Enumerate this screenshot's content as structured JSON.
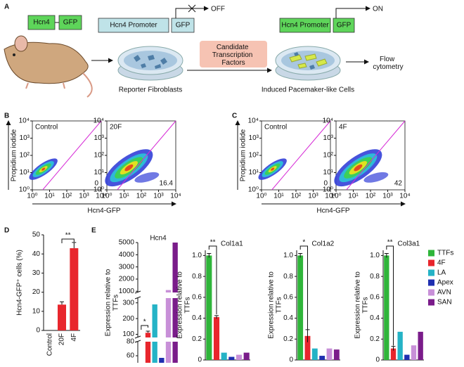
{
  "figure": {
    "panel_labels": [
      "A",
      "B",
      "C",
      "D",
      "E"
    ]
  },
  "diagram": {
    "hcn4": "Hcn4",
    "gfp": "GFP",
    "promoter_off": "Hcn4 Promoter",
    "gfp_off": "GFP",
    "off": "OFF",
    "factors": [
      "Candidate",
      "Transcription",
      "Factors"
    ],
    "promoter_on": "Hcn4 Promoter",
    "gfp_on": "GFP",
    "on": "ON",
    "fibroblasts": "Reporter Fibroblasts",
    "induced": "Induced Pacemaker-like Cells",
    "flow": [
      "Flow",
      "cytometry"
    ]
  },
  "chart_data": [
    {
      "type": "density",
      "label": "Control",
      "gate_percent": 0,
      "log": true,
      "xlim": [
        1,
        10000
      ],
      "ylim": [
        1,
        10000
      ],
      "xticks": [
        {
          "value": 1,
          "label": "10⁰"
        },
        {
          "value": 10,
          "label": "10¹"
        },
        {
          "value": 100,
          "label": "10²"
        },
        {
          "value": 1000,
          "label": "10³"
        },
        {
          "value": 10000,
          "label": "10⁴"
        }
      ],
      "yticks": [
        {
          "value": 1,
          "label": "10⁰"
        },
        {
          "value": 10,
          "label": "10¹"
        },
        {
          "value": 100,
          "label": "10²"
        },
        {
          "value": 1000,
          "label": "10³"
        },
        {
          "value": 10000,
          "label": "10⁴"
        }
      ],
      "xlabel": "Hcn4-GFP",
      "ylabel": "Propidium iodide"
    },
    {
      "type": "density",
      "label": "20F",
      "gate_percent": 16.4,
      "log": true,
      "xlim": [
        1,
        10000
      ],
      "ylim": [
        1,
        10000
      ],
      "xticks": [
        {
          "value": 1,
          "label": "10⁰"
        },
        {
          "value": 10,
          "label": "10¹"
        },
        {
          "value": 100,
          "label": "10²"
        },
        {
          "value": 1000,
          "label": "10³"
        },
        {
          "value": 10000,
          "label": "10⁴"
        }
      ],
      "yticks": [
        {
          "value": 1,
          "label": "10⁰"
        },
        {
          "value": 10,
          "label": "10¹"
        },
        {
          "value": 100,
          "label": "10²"
        },
        {
          "value": 1000,
          "label": "10³"
        },
        {
          "value": 10000,
          "label": "10⁴"
        }
      ]
    },
    {
      "type": "density",
      "label": "Control",
      "gate_percent": 0,
      "log": true,
      "xlim": [
        1,
        10000
      ],
      "ylim": [
        1,
        10000
      ],
      "xticks": [
        {
          "value": 1,
          "label": "10⁰"
        },
        {
          "value": 10,
          "label": "10¹"
        },
        {
          "value": 100,
          "label": "10²"
        },
        {
          "value": 1000,
          "label": "10³"
        },
        {
          "value": 10000,
          "label": "10⁴"
        }
      ],
      "yticks": [
        {
          "value": 1,
          "label": "10⁰"
        },
        {
          "value": 10,
          "label": "10¹"
        },
        {
          "value": 100,
          "label": "10²"
        },
        {
          "value": 1000,
          "label": "10³"
        },
        {
          "value": 10000,
          "label": "10⁴"
        }
      ],
      "xlabel": "Hcn4-GFP",
      "ylabel": "Propidium iodide"
    },
    {
      "type": "density",
      "label": "4F",
      "gate_percent": 42,
      "log": true,
      "xlim": [
        1,
        10000
      ],
      "ylim": [
        1,
        10000
      ],
      "xticks": [
        {
          "value": 1,
          "label": "10⁰"
        },
        {
          "value": 10,
          "label": "10¹"
        },
        {
          "value": 100,
          "label": "10²"
        },
        {
          "value": 1000,
          "label": "10³"
        },
        {
          "value": 10000,
          "label": "10⁴"
        }
      ],
      "yticks": [
        {
          "value": 1,
          "label": "10⁰"
        },
        {
          "value": 10,
          "label": "10¹"
        },
        {
          "value": 100,
          "label": "10²"
        },
        {
          "value": 1000,
          "label": "10³"
        },
        {
          "value": 10000,
          "label": "10⁴"
        }
      ]
    },
    {
      "type": "bar",
      "categories": [
        "Control",
        "20F",
        "4F"
      ],
      "values": [
        0,
        13.5,
        43
      ],
      "errors": [
        0,
        1.5,
        3
      ],
      "color": "#e8262d",
      "ylim": [
        0,
        50
      ],
      "yticks": [
        0,
        10,
        20,
        30,
        40,
        50
      ],
      "ylabel": "Hcn4-GFP⁺ cells (%)",
      "significance": "**"
    },
    {
      "type": "brokenbar",
      "title": "Hcn4",
      "values": [
        1,
        110,
        290,
        57,
        1100,
        5000
      ],
      "errors": [
        null,
        10,
        null,
        null,
        null,
        null
      ],
      "colors": [
        "#2fb53a",
        "#e8262d",
        "#25b3c6",
        "#1f2fb0",
        "#c890d8",
        "#7a1c8a"
      ],
      "segments": [
        {
          "ylim": [
            50,
            80
          ],
          "yticks": [
            60,
            80
          ]
        },
        {
          "ylim": [
            80,
            330
          ],
          "yticks": [
            100,
            200,
            300
          ]
        },
        {
          "ylim": [
            900,
            5000
          ],
          "yticks": [
            1000,
            2000,
            3000,
            4000,
            5000
          ]
        }
      ],
      "ylabel": [
        "Expression relative to",
        "TTFs"
      ],
      "significance": "*"
    },
    {
      "type": "bar6",
      "title": "Col1a1",
      "values": [
        1,
        0.41,
        0.07,
        0.03,
        0.05,
        0.07
      ],
      "errors": [
        0.02,
        0.015,
        null,
        null,
        null,
        null
      ],
      "colors": [
        "#2fb53a",
        "#e8262d",
        "#25b3c6",
        "#1f2fb0",
        "#c890d8",
        "#7a1c8a"
      ],
      "ylim": [
        0,
        1.05
      ],
      "yticks": [
        0,
        0.2,
        0.4,
        0.6,
        0.8,
        {
          "value": 1,
          "label": "1.0"
        }
      ],
      "ylabel": [
        "Expression relative to",
        "TTFs"
      ],
      "significance": "**"
    },
    {
      "type": "bar6",
      "title": "Col1a2",
      "values": [
        1,
        0.23,
        0.11,
        0.04,
        0.11,
        0.1
      ],
      "errors": [
        0.02,
        0.06,
        null,
        null,
        null,
        null
      ],
      "colors": [
        "#2fb53a",
        "#e8262d",
        "#25b3c6",
        "#1f2fb0",
        "#c890d8",
        "#7a1c8a"
      ],
      "ylim": [
        0,
        1.05
      ],
      "yticks": [
        0,
        0.2,
        0.4,
        0.6,
        0.8,
        {
          "value": 1,
          "label": "1.0"
        }
      ],
      "ylabel": [
        "Expression relative to",
        "TTFs"
      ],
      "significance": "*"
    },
    {
      "type": "bar6",
      "title": "Col3a1",
      "values": [
        1,
        0.11,
        0.27,
        0.05,
        0.14,
        0.27
      ],
      "errors": [
        0.02,
        0.02,
        null,
        null,
        null,
        null
      ],
      "colors": [
        "#2fb53a",
        "#e8262d",
        "#25b3c6",
        "#1f2fb0",
        "#c890d8",
        "#7a1c8a"
      ],
      "ylim": [
        0,
        1.05
      ],
      "yticks": [
        0,
        0.2,
        0.4,
        0.6,
        0.8,
        {
          "value": 1,
          "label": "1.0"
        }
      ],
      "ylabel": [
        "Expression relative to",
        "TTFs"
      ],
      "significance": "**",
      "legend": [
        "TTFs",
        "4F",
        "LA",
        "Apex",
        "AVN",
        "SAN"
      ]
    }
  ]
}
